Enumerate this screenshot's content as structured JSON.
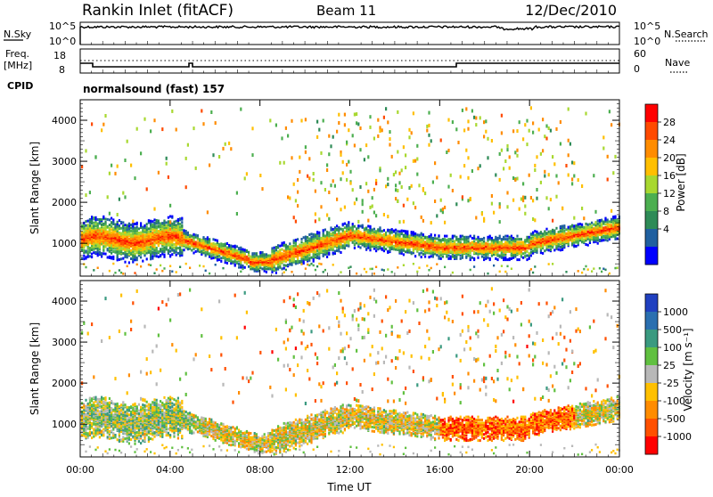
{
  "header": {
    "station": "Rankin Inlet (fitACF)",
    "beam": "Beam 11",
    "date": "12/Dec/2010"
  },
  "nsky_panel": {
    "left_label": "N.Sky",
    "right_label": "N.Search",
    "ticks": [
      "10^5",
      "10^0"
    ]
  },
  "freq_panel": {
    "left_label_1": "Freq.",
    "left_label_2": "[MHz]",
    "left_ticks": [
      "18",
      "8"
    ],
    "right_label": "Nave",
    "right_ticks": [
      "60",
      "0"
    ]
  },
  "cpid": {
    "label": "CPID",
    "value": "normalsound (fast) 157"
  },
  "time_axis": {
    "label": "Time UT",
    "ticks": [
      "00:00",
      "04:00",
      "08:00",
      "12:00",
      "16:00",
      "20:00",
      "00:00"
    ]
  },
  "chart_data": [
    {
      "type": "heatmap",
      "name": "power",
      "ylabel": "Slant Range [km]",
      "yticks": [
        1000,
        2000,
        3000,
        4000
      ],
      "ylim": [
        200,
        4500
      ],
      "xlim_hours": [
        0,
        24
      ],
      "colorbar": {
        "label": "Power [dB]",
        "ticks": [
          "28",
          "24",
          "20",
          "16",
          "12",
          "8",
          "4"
        ],
        "colors": [
          "#ff0000",
          "#ff4a00",
          "#ff8c00",
          "#ffbf00",
          "#a8d830",
          "#4caf50",
          "#2e8b57",
          "#2060a0",
          "#0000ff"
        ]
      }
    },
    {
      "type": "heatmap",
      "name": "velocity",
      "ylabel": "Slant Range [km]",
      "yticks": [
        1000,
        2000,
        3000,
        4000
      ],
      "ylim": [
        200,
        4500
      ],
      "xlim_hours": [
        0,
        24
      ],
      "colorbar": {
        "label": "Velocity [m s⁻¹]",
        "ticks": [
          "1000",
          "500",
          "100",
          "25",
          "-25",
          "-100",
          "-500",
          "-1000"
        ],
        "colors": [
          "#2040c0",
          "#2a6fb0",
          "#3a9a80",
          "#60c040",
          "#b8b8b8",
          "#ffc000",
          "#ff8c00",
          "#ff5000",
          "#ff0000"
        ]
      }
    }
  ]
}
